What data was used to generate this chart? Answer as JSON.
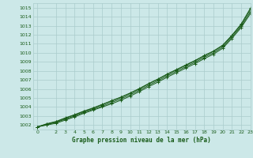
{
  "xlabel": "Graphe pression niveau de la mer (hPa)",
  "x": [
    0,
    1,
    2,
    3,
    4,
    5,
    6,
    7,
    8,
    9,
    10,
    11,
    12,
    13,
    14,
    15,
    16,
    17,
    18,
    19,
    20,
    21,
    22,
    23
  ],
  "line1": [
    1001.8,
    1002.1,
    1002.35,
    1002.75,
    1003.1,
    1003.5,
    1003.85,
    1004.25,
    1004.65,
    1005.05,
    1005.5,
    1006.0,
    1006.55,
    1007.05,
    1007.6,
    1008.1,
    1008.6,
    1009.1,
    1009.65,
    1010.15,
    1010.8,
    1011.9,
    1013.1,
    1014.8
  ],
  "line2": [
    1001.8,
    1002.05,
    1002.3,
    1002.65,
    1003.0,
    1003.4,
    1003.75,
    1004.1,
    1004.5,
    1004.9,
    1005.35,
    1005.85,
    1006.4,
    1006.9,
    1007.45,
    1007.95,
    1008.45,
    1008.95,
    1009.5,
    1010.0,
    1010.65,
    1011.75,
    1012.95,
    1014.55
  ],
  "line3": [
    1001.8,
    1002.0,
    1002.2,
    1002.55,
    1002.9,
    1003.3,
    1003.65,
    1004.0,
    1004.35,
    1004.75,
    1005.2,
    1005.7,
    1006.25,
    1006.75,
    1007.3,
    1007.8,
    1008.3,
    1008.8,
    1009.35,
    1009.85,
    1010.5,
    1011.6,
    1012.8,
    1014.35
  ],
  "line4": [
    1001.8,
    1002.15,
    1002.4,
    1002.8,
    1003.15,
    1003.55,
    1003.9,
    1004.3,
    1004.7,
    1005.1,
    1005.55,
    1006.05,
    1006.6,
    1007.1,
    1007.65,
    1008.15,
    1008.65,
    1009.15,
    1009.7,
    1010.2,
    1010.85,
    1011.95,
    1013.2,
    1014.95
  ],
  "line_color": "#1a5c1a",
  "bg_color": "#cce8e8",
  "grid_color": "#aacccc",
  "ylim_min": 1001.5,
  "ylim_max": 1015.5,
  "xlim_min": -0.5,
  "xlim_max": 23.0,
  "yticks": [
    1002,
    1003,
    1004,
    1005,
    1006,
    1007,
    1008,
    1009,
    1010,
    1011,
    1012,
    1013,
    1014,
    1015
  ],
  "xticks": [
    0,
    2,
    3,
    4,
    5,
    6,
    7,
    8,
    9,
    10,
    11,
    12,
    13,
    14,
    15,
    16,
    17,
    18,
    19,
    20,
    21,
    22,
    23
  ],
  "font_color": "#1a5c1a",
  "marker": "+"
}
